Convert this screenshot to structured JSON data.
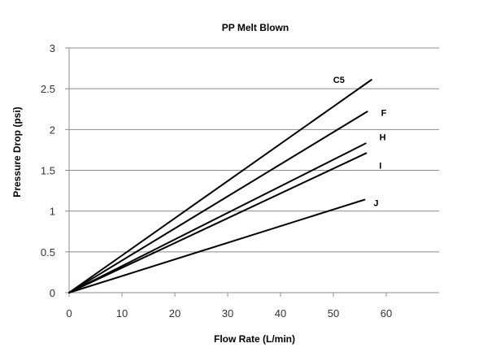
{
  "chart_data": {
    "type": "line",
    "title": "PP Melt Blown",
    "xlabel": "Flow Rate (L/min)",
    "ylabel": "Pressure Drop (psi)",
    "xlim": [
      0,
      70
    ],
    "ylim": [
      0,
      3
    ],
    "x_ticks": [
      0,
      10,
      20,
      30,
      40,
      50,
      60
    ],
    "x_tick_labels": [
      "0",
      "10",
      "20",
      "30",
      "40",
      "50",
      "60"
    ],
    "y_ticks": [
      0,
      0.5,
      1,
      1.5,
      2,
      2.5,
      3
    ],
    "y_tick_labels": [
      "0",
      "0.5",
      "1",
      "1.5",
      "2",
      "2.5",
      "3"
    ],
    "grid": "horizontal",
    "line_color": "#000000",
    "series": [
      {
        "name": "C5",
        "x": [
          0,
          57.2
        ],
        "y": [
          0,
          2.61
        ]
      },
      {
        "name": "F",
        "x": [
          0,
          56.4
        ],
        "y": [
          0,
          2.22
        ]
      },
      {
        "name": "H",
        "x": [
          0,
          56.1
        ],
        "y": [
          0,
          1.83
        ]
      },
      {
        "name": "I",
        "x": [
          0,
          56.2
        ],
        "y": [
          0,
          1.71
        ]
      },
      {
        "name": "J",
        "x": [
          0,
          55.9
        ],
        "y": [
          0,
          1.14
        ]
      }
    ]
  }
}
